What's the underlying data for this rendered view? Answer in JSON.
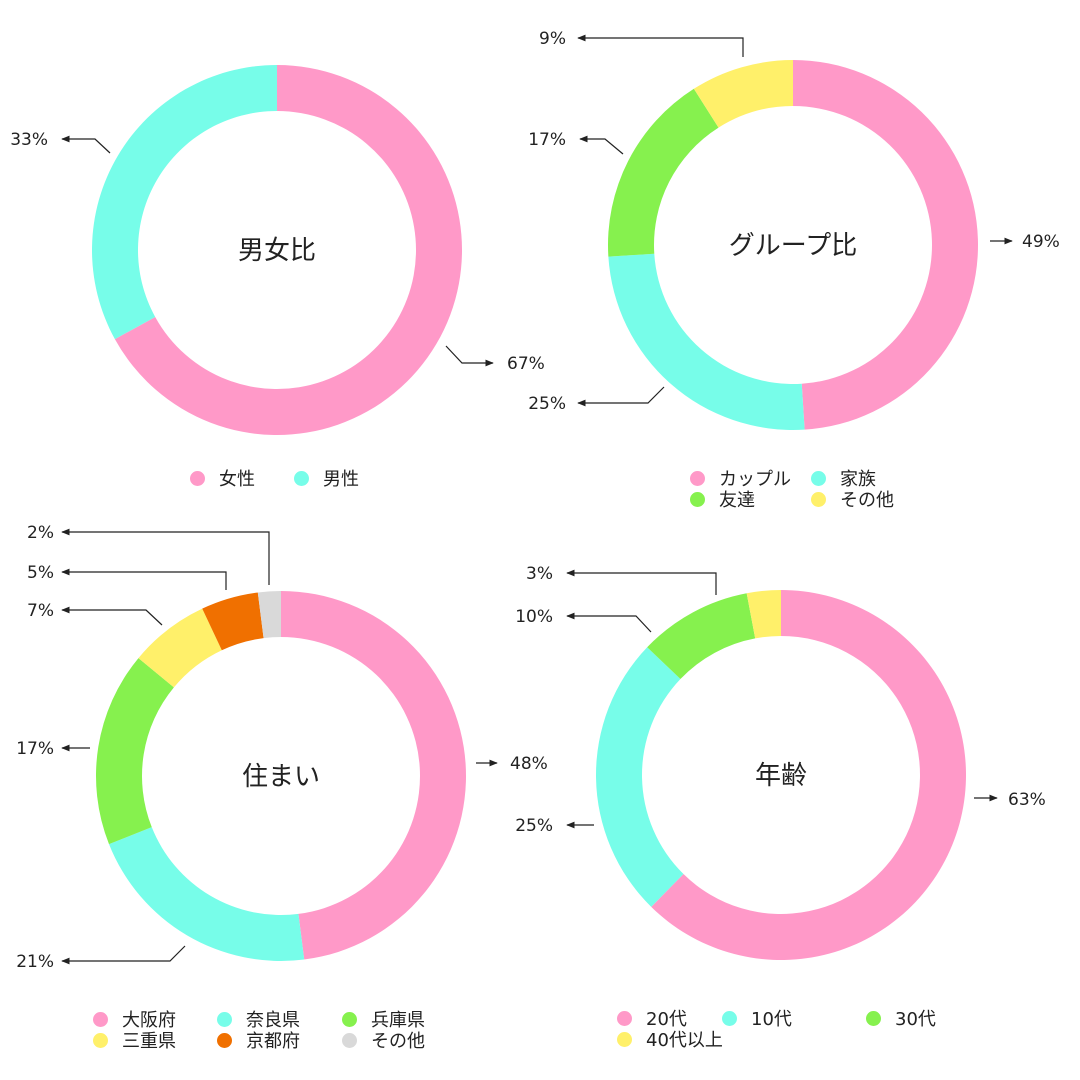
{
  "chart_data": [
    {
      "type": "pie",
      "title": "男女比",
      "categories": [
        "女性",
        "男性"
      ],
      "values": [
        67,
        33
      ],
      "labels": [
        "67%",
        "33%"
      ],
      "colors": [
        "#ff99c8",
        "#77fde9"
      ],
      "legend": [
        "女性",
        "男性"
      ]
    },
    {
      "type": "pie",
      "title": "グループ比",
      "categories": [
        "カップル",
        "家族",
        "友達",
        "その他"
      ],
      "values": [
        49,
        25,
        17,
        9
      ],
      "labels": [
        "49%",
        "25%",
        "17%",
        "9%"
      ],
      "colors": [
        "#ff99c8",
        "#77fde9",
        "#86f14e",
        "#fff06a"
      ],
      "legend": [
        "カップル",
        "家族",
        "友達",
        "その他"
      ]
    },
    {
      "type": "pie",
      "title": "住まい",
      "categories": [
        "大阪府",
        "奈良県",
        "兵庫県",
        "三重県",
        "京都府",
        "その他"
      ],
      "values": [
        48,
        21,
        17,
        7,
        5,
        2
      ],
      "labels": [
        "48%",
        "21%",
        "17%",
        "7%",
        "5%",
        "2%"
      ],
      "colors": [
        "#ff99c8",
        "#77fde9",
        "#86f14e",
        "#fff06a",
        "#f07000",
        "#d9d9d9"
      ],
      "legend": [
        "大阪府",
        "奈良県",
        "兵庫県",
        "三重県",
        "京都府",
        "その他"
      ]
    },
    {
      "type": "pie",
      "title": "年齢",
      "categories": [
        "20代",
        "10代",
        "30代",
        "40代以上"
      ],
      "values": [
        63,
        25,
        10,
        3
      ],
      "labels": [
        "63%",
        "25%",
        "10%",
        "3%"
      ],
      "colors": [
        "#ff99c8",
        "#77fde9",
        "#86f14e",
        "#fff06a"
      ],
      "legend": [
        "20代",
        "10代",
        "30代",
        "40代以上"
      ]
    }
  ]
}
